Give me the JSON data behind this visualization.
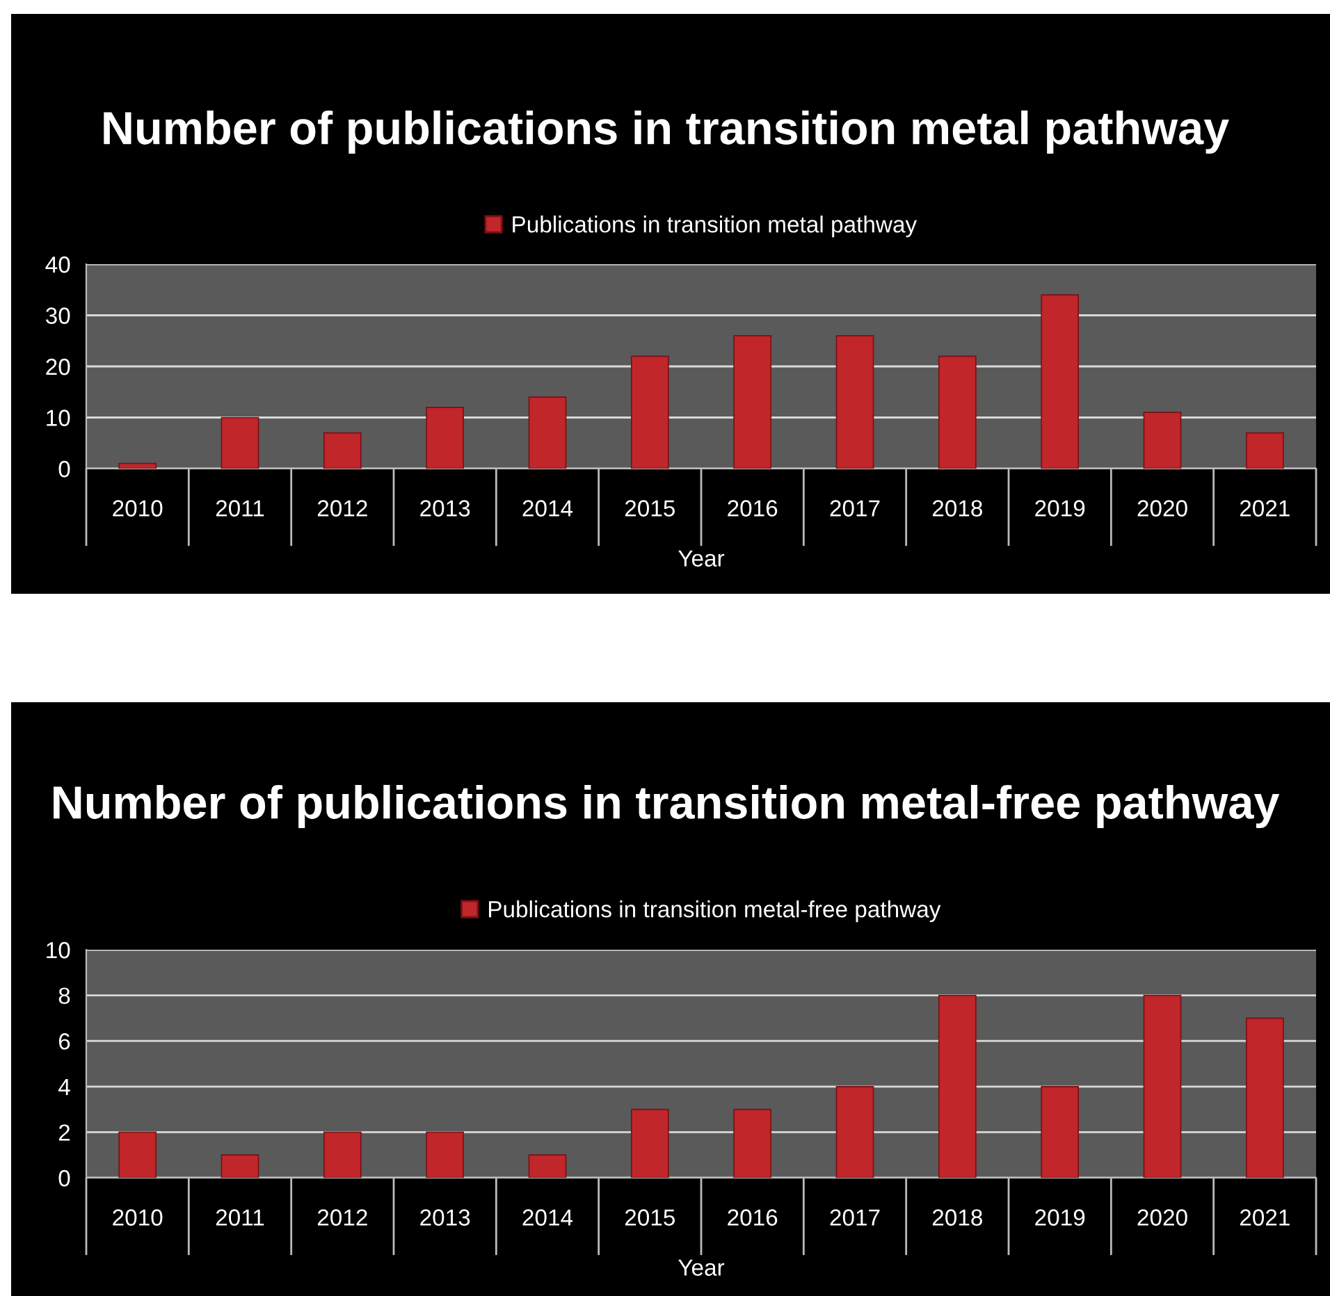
{
  "chart_data": [
    {
      "type": "bar",
      "title": "Number of publications in transition metal pathway",
      "xlabel": "Year",
      "categories": [
        "2010",
        "2011",
        "2012",
        "2013",
        "2014",
        "2015",
        "2016",
        "2017",
        "2018",
        "2019",
        "2020",
        "2021"
      ],
      "series": [
        {
          "name": "Publications in transition metal pathway",
          "color": "#c0262a",
          "values": [
            1,
            10,
            7,
            12,
            14,
            22,
            26,
            26,
            22,
            34,
            11,
            7
          ]
        }
      ],
      "ylim": [
        0,
        40
      ],
      "yticks": [
        0,
        10,
        20,
        30,
        40
      ],
      "grid": "y",
      "legend": "top"
    },
    {
      "type": "bar",
      "title": "Number of publications in transition metal-free pathway",
      "xlabel": "Year",
      "categories": [
        "2010",
        "2011",
        "2012",
        "2013",
        "2014",
        "2015",
        "2016",
        "2017",
        "2018",
        "2019",
        "2020",
        "2021"
      ],
      "series": [
        {
          "name": "Publications in transition metal-free pathway",
          "color": "#c0262a",
          "values": [
            2,
            1,
            2,
            2,
            1,
            3,
            3,
            4,
            8,
            4,
            8,
            7
          ]
        }
      ],
      "ylim": [
        0,
        10
      ],
      "yticks": [
        0,
        2,
        4,
        6,
        8,
        10
      ],
      "grid": "y",
      "legend": "top"
    }
  ]
}
